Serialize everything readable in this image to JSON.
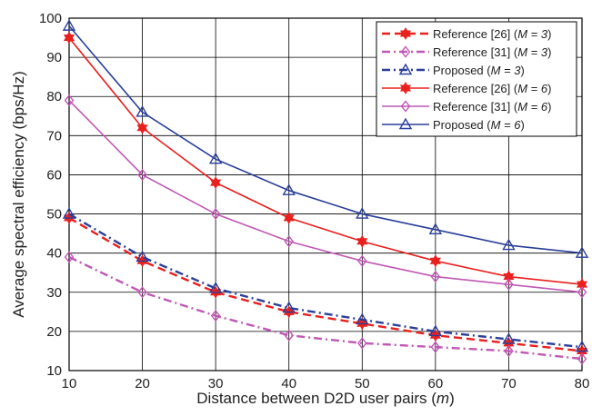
{
  "chart_data": {
    "type": "line",
    "title": "",
    "xlabel": "Distance between D2D user pairs",
    "xlabel_unit": "m",
    "ylabel": "Average spectral efficiency (bps/Hz)",
    "xlim": [
      10,
      80
    ],
    "ylim": [
      10,
      100
    ],
    "xticks": [
      "10",
      "20",
      "30",
      "40",
      "50",
      "60",
      "70",
      "80"
    ],
    "yticks": [
      "10",
      "20",
      "30",
      "40",
      "50",
      "60",
      "70",
      "80",
      "90",
      "100"
    ],
    "grid": true,
    "legend_position": "top-right",
    "x": [
      10,
      20,
      30,
      40,
      50,
      60,
      70,
      80
    ],
    "series": [
      {
        "name": "Reference [26]",
        "param": "M = 3",
        "color": "#e8201e",
        "dash": "dashed",
        "marker": "star",
        "values": [
          49,
          38,
          30,
          25,
          22,
          19,
          17,
          15
        ]
      },
      {
        "name": "Reference [31]",
        "param": "M = 3",
        "color": "#c058b4",
        "dash": "dashdot",
        "marker": "diamond",
        "values": [
          39,
          30,
          24,
          19,
          17,
          16,
          15,
          13
        ]
      },
      {
        "name": "Proposed",
        "param": "M = 3",
        "color": "#2a3f9a",
        "dash": "dashdot",
        "marker": "triangle",
        "values": [
          50,
          39,
          31,
          26,
          23,
          20,
          18,
          16
        ]
      },
      {
        "name": "Reference [26]",
        "param": "M = 6",
        "color": "#e8201e",
        "dash": "solid",
        "marker": "star",
        "values": [
          95,
          72,
          58,
          49,
          43,
          38,
          34,
          32
        ]
      },
      {
        "name": "Reference [31]",
        "param": "M = 6",
        "color": "#c058b4",
        "dash": "solid",
        "marker": "diamond",
        "values": [
          79,
          60,
          50,
          43,
          38,
          34,
          32,
          30
        ]
      },
      {
        "name": "Proposed",
        "param": "M = 6",
        "color": "#2a3f9a",
        "dash": "solid",
        "marker": "triangle",
        "values": [
          98,
          76,
          64,
          56,
          50,
          46,
          42,
          40
        ]
      }
    ]
  }
}
